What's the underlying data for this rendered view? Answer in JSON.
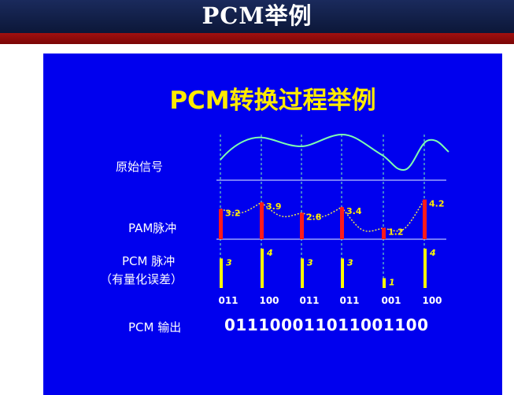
{
  "header": {
    "title": "PCM举例"
  },
  "slide": {
    "title": "PCM转换过程举例"
  },
  "rows": {
    "original_label": "原始信号",
    "pam_label": "PAM脉冲",
    "pcm_label_line1": "PCM 脉冲",
    "pcm_label_line2": "（有量化误差）",
    "output_label": "PCM 输出"
  },
  "samples": {
    "pam_values": [
      "3.2",
      "3.9",
      "2.8",
      "3.4",
      "1.2",
      "4.2"
    ],
    "pam_heights": [
      3.2,
      3.9,
      2.8,
      3.4,
      1.2,
      4.2
    ],
    "quantized_labels": [
      "3",
      "4",
      "3",
      "3",
      "1",
      "4"
    ],
    "quantized_levels": [
      3,
      4,
      3,
      3,
      1,
      4
    ],
    "codes": [
      "011",
      "100",
      "011",
      "011",
      "001",
      "100"
    ]
  },
  "output": {
    "bitstream": "011100011011001100"
  },
  "colors": {
    "background": "#0000ee",
    "title": "#ffea00",
    "signal": "#7fffb0",
    "pam_bar": "#ff1a1a",
    "pcm_bar": "#ffff00",
    "axis": "#b8c4ff"
  }
}
